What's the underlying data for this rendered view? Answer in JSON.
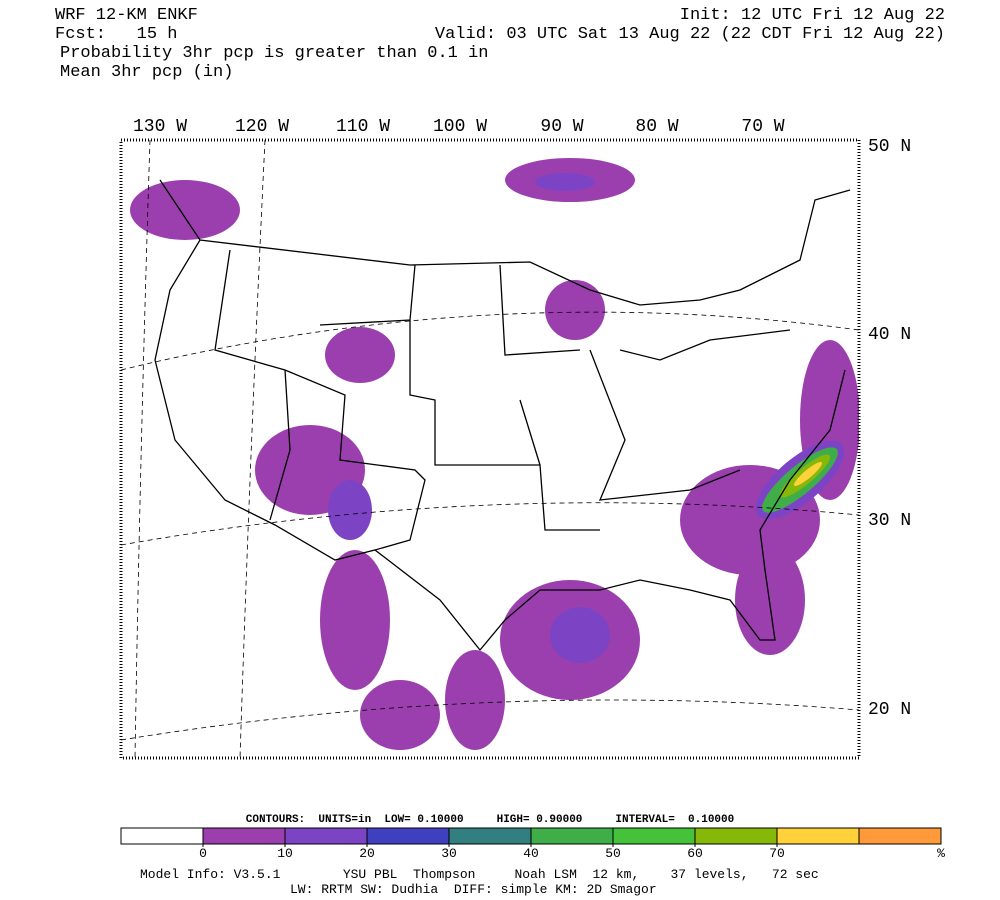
{
  "header": {
    "title": "WRF 12-KM ENKF",
    "forecast": "Fcst:   15 h",
    "init": "Init: 12 UTC Fri 12 Aug 22",
    "valid": "Valid: 03 UTC Sat 13 Aug 22 (22 CDT Fri 12 Aug 22)",
    "field1": "Probability 3hr pcp is greater than 0.1 in",
    "field2": "Mean 3hr pcp (in)"
  },
  "map": {
    "longitude_labels": [
      "130 W",
      "120 W",
      "110 W",
      "100 W",
      "90 W",
      "80 W",
      "70 W"
    ],
    "latitude_labels": [
      "50 N",
      "40 N",
      "30 N",
      "20 N"
    ]
  },
  "colorbar": {
    "contours_text": "CONTOURS:  UNITS=in  LOW= 0.10000     HIGH= 0.90000     INTERVAL=  0.10000",
    "ticks": [
      0,
      10,
      20,
      30,
      40,
      50,
      60,
      70
    ],
    "unit": "%",
    "colors": [
      "#ffffff",
      "#9b3fae",
      "#7c44c4",
      "#3f3fbf",
      "#327f80",
      "#3fae48",
      "#45c23a",
      "#86b80a",
      "#ffd23c",
      "#ff9a3a"
    ]
  },
  "footer": {
    "line1": "Model Info: V3.5.1        YSU PBL  Thompson     Noah LSM  12 km,    37 levels,   72 sec",
    "line2": "LW: RRTM SW: Dudhia  DIFF: simple KM: 2D Smagor"
  }
}
